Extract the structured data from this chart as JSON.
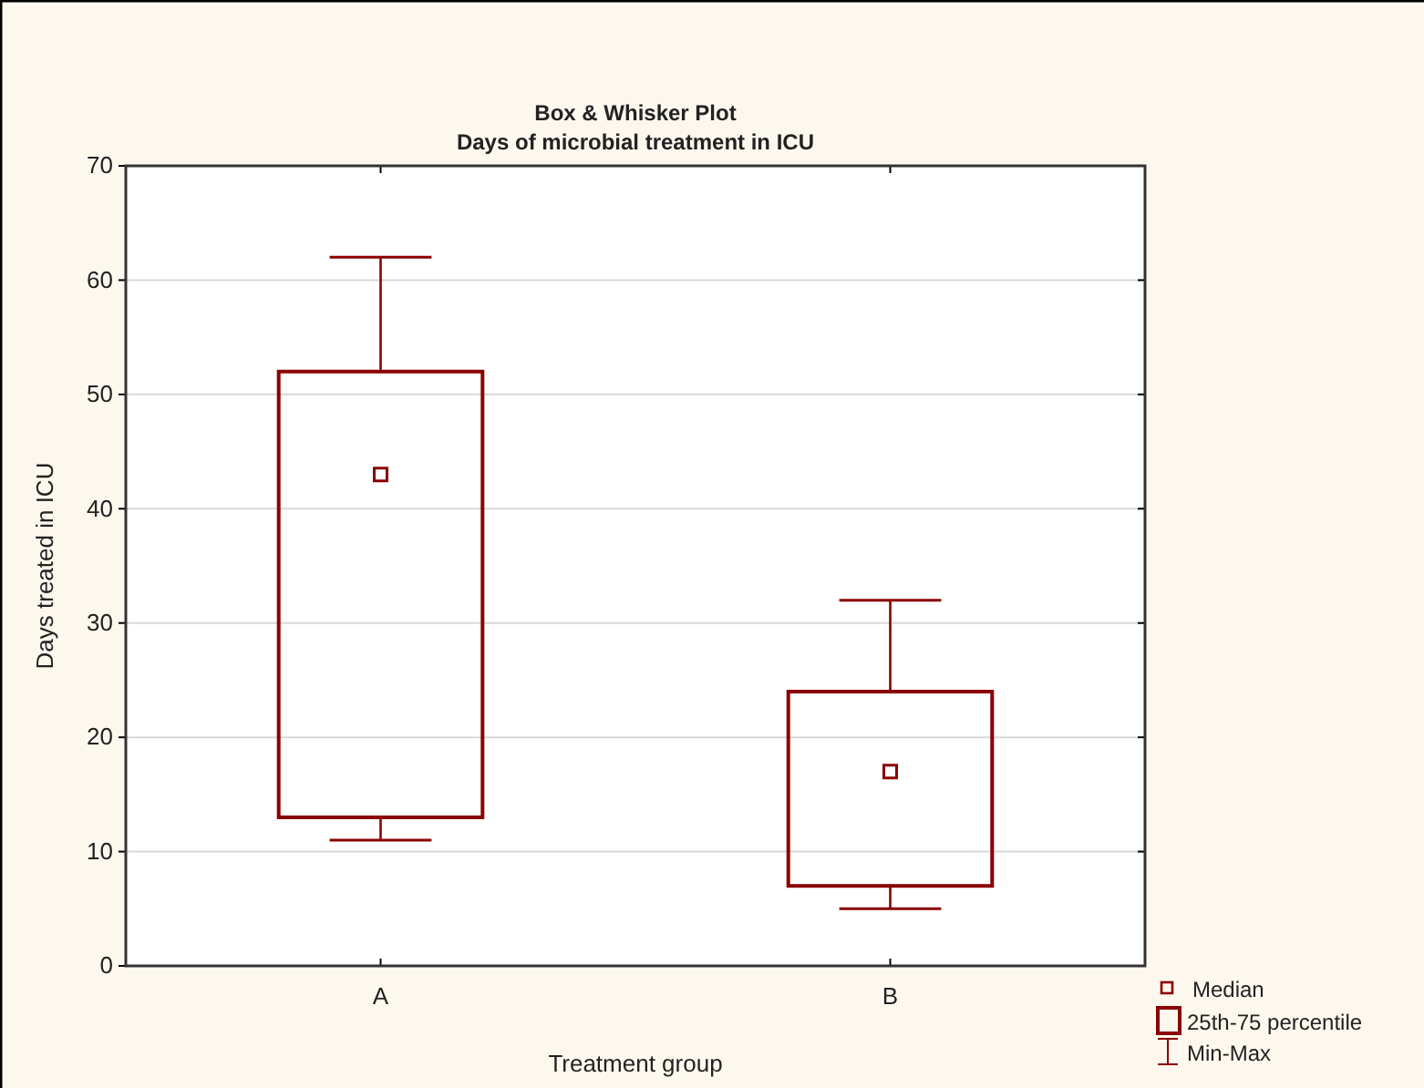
{
  "chart_data": {
    "type": "box",
    "title": "Box & Whisker Plot",
    "subtitle": "Days of microbial treatment in ICU",
    "xlabel": "Treatment group",
    "ylabel": "Days treated in ICU",
    "categories": [
      "A",
      "B"
    ],
    "series": [
      {
        "color": "#8b0000",
        "boxes": [
          {
            "low": 11,
            "q1": 13,
            "median": 43,
            "q3": 52,
            "high": 62
          },
          {
            "low": 5,
            "q1": 7,
            "median": 17,
            "q3": 24,
            "high": 32
          }
        ]
      }
    ],
    "ylim": [
      0,
      70
    ],
    "yticks": [
      0,
      10,
      20,
      30,
      40,
      50,
      60,
      70
    ],
    "grid": "y",
    "marker": "square",
    "annotations": [
      "Median",
      "25th-75 percentile",
      "Min-Max"
    ]
  }
}
